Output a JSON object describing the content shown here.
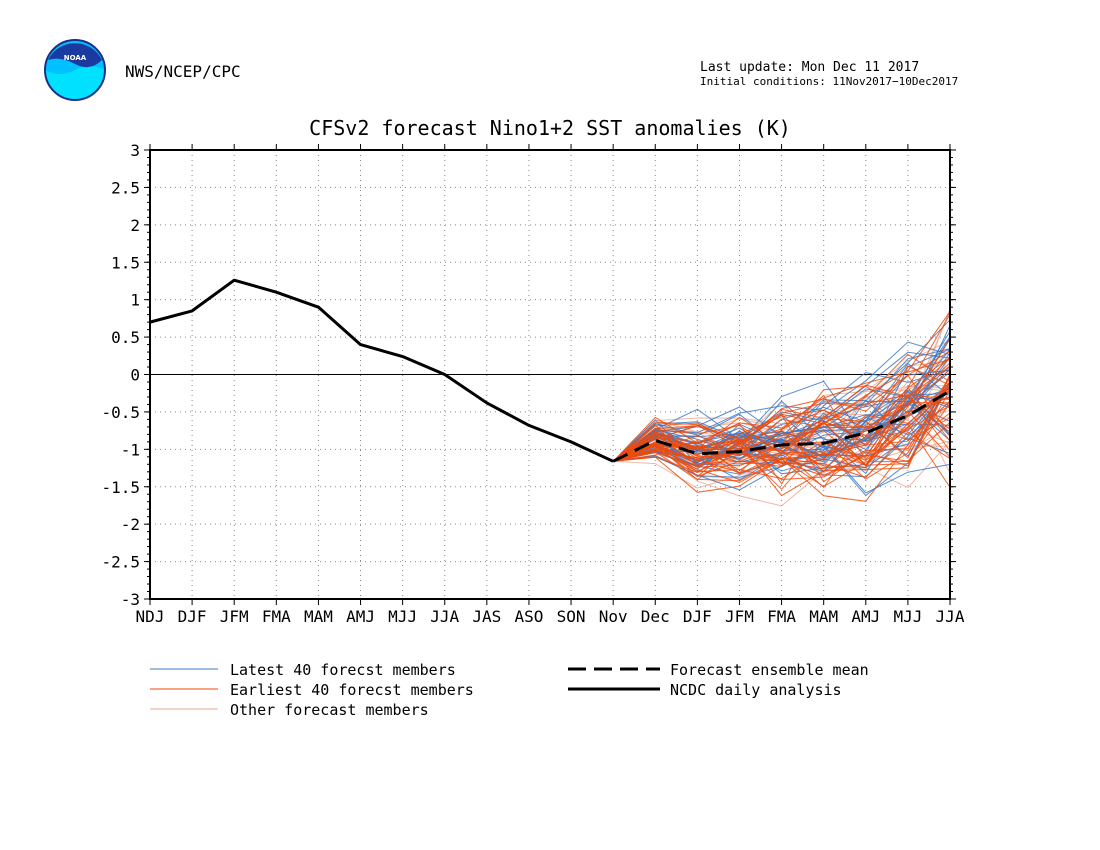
{
  "header": {
    "agency": "NWS/NCEP/CPC",
    "logo_text": "NOAA",
    "last_update": "Last update: Mon Dec 11 2017",
    "initial_conditions": "Initial conditions: 11Nov2017−10Dec2017"
  },
  "chart_data": {
    "type": "line",
    "title": "CFSv2 forecast Nino1+2 SST anomalies (K)",
    "title_color": "#ff0000",
    "x_labels": [
      "NDJ",
      "DJF",
      "JFM",
      "FMA",
      "MAM",
      "AMJ",
      "MJJ",
      "JJA",
      "JAS",
      "ASO",
      "SON",
      "Nov",
      "Dec",
      "DJF",
      "JFM",
      "FMA",
      "MAM",
      "AMJ",
      "MJJ",
      "JJA"
    ],
    "ylim": [
      -3,
      3
    ],
    "y_ticks": [
      "3",
      "2.5",
      "2",
      "1.5",
      "1",
      "0.5",
      "0",
      "-0.5",
      "-1",
      "-1.5",
      "-2",
      "-2.5",
      "-3"
    ],
    "grid": true,
    "zero_line": true,
    "analysis": {
      "name": "NCDC daily analysis",
      "color": "#000000",
      "values": [
        0.7,
        0.85,
        1.26,
        1.1,
        0.9,
        0.4,
        0.24,
        0.0,
        -0.38,
        -0.68,
        -0.9,
        -1.16
      ]
    },
    "ensemble_mean": {
      "name": "Forecast ensemble mean",
      "color": "#000000",
      "start_index": 11,
      "values": [
        -1.16,
        -0.88,
        -1.06,
        -1.03,
        -0.94,
        -0.92,
        -0.78,
        -0.55,
        -0.22
      ]
    },
    "member_groups": [
      {
        "name": "Latest 40 forecst members",
        "color": "#3a78c8",
        "count": 40
      },
      {
        "name": "Earliest 40 forecst members",
        "color": "#f04a0a",
        "count": 40
      },
      {
        "name": "Other forecast members",
        "color": "#e8a890",
        "count": 20
      }
    ],
    "legend": {
      "placement": "bottom",
      "members_latest": "Latest 40 forecst members",
      "members_earliest": "Earliest 40 forecst members",
      "members_other": "Other forecast members",
      "mean": "Forecast ensemble mean",
      "analysis": "NCDC daily analysis"
    }
  }
}
